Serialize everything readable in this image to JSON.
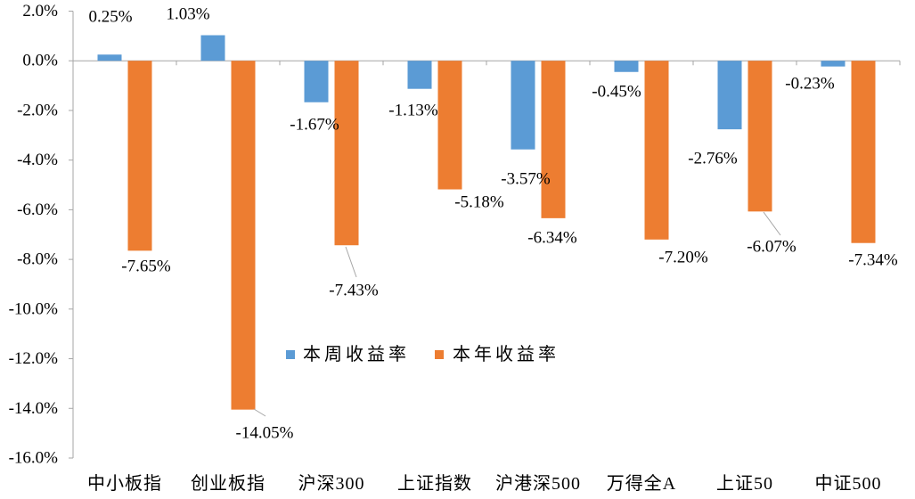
{
  "chart_data": {
    "type": "bar",
    "categories": [
      "中小板指",
      "创业板指",
      "沪深300",
      "上证指数",
      "沪港深500",
      "万得全A",
      "上证50",
      "中证500"
    ],
    "series": [
      {
        "name": "本周收益率",
        "color": "#5B9BD5",
        "values": [
          0.25,
          1.03,
          -1.67,
          -1.13,
          -3.57,
          -0.45,
          -2.76,
          -0.23
        ],
        "labels": [
          "0.25%",
          "1.03%",
          "-1.67%",
          "-1.13%",
          "-3.57%",
          "-0.45%",
          "-2.76%",
          "-0.23%"
        ]
      },
      {
        "name": "本年收益率",
        "color": "#ED7D31",
        "values": [
          -7.65,
          -14.05,
          -7.43,
          -5.18,
          -6.34,
          -7.2,
          -6.07,
          -7.34
        ],
        "labels": [
          "-7.65%",
          "-14.05%",
          "-7.43%",
          "-5.18%",
          "-6.34%",
          "-7.20%",
          "-6.07%",
          "-7.34%"
        ]
      }
    ],
    "ylim": [
      -16,
      2
    ],
    "y_ticks": {
      "values": [
        2,
        0,
        -2,
        -4,
        -6,
        -8,
        -10,
        -12,
        -14,
        -16
      ],
      "labels": [
        "2.0%",
        "0.0%",
        "-2.0%",
        "-4.0%",
        "-6.0%",
        "-8.0%",
        "-10.0%",
        "-12.0%",
        "-14.0%",
        "-16.0%"
      ]
    },
    "title": "",
    "xlabel": "",
    "ylabel": "",
    "grid": false,
    "legend": "center",
    "axis_color": "#A6A6A6"
  }
}
